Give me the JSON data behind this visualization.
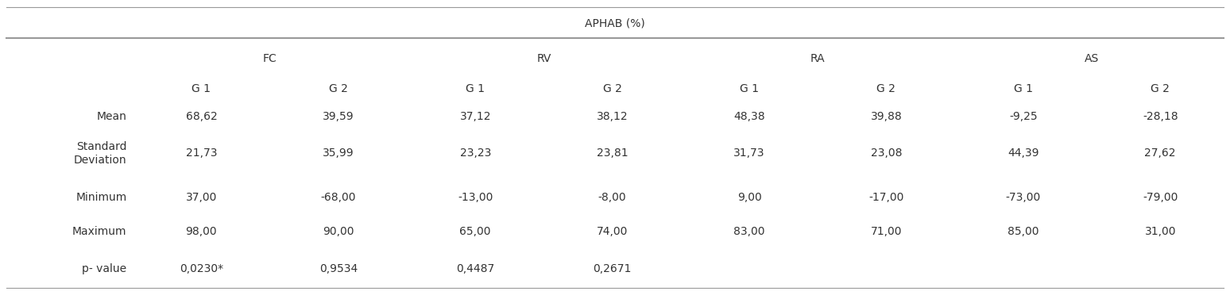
{
  "title": "APHAB (%)",
  "col_groups": [
    "FC",
    "RV",
    "RA",
    "AS"
  ],
  "subgroups": [
    "G 1",
    "G 2",
    "G 1",
    "G 2",
    "G 1",
    "G 2",
    "G 1",
    "G 2"
  ],
  "row_labels": [
    "Mean",
    "Standard\nDeviation",
    "Minimum",
    "Maximum",
    "p- value"
  ],
  "data": [
    [
      "68,62",
      "39,59",
      "37,12",
      "38,12",
      "48,38",
      "39,88",
      "-9,25",
      "-28,18"
    ],
    [
      "21,73",
      "35,99",
      "23,23",
      "23,81",
      "31,73",
      "23,08",
      "44,39",
      "27,62"
    ],
    [
      "37,00",
      "-68,00",
      "-13,00",
      "-8,00",
      "9,00",
      "-17,00",
      "-73,00",
      "-79,00"
    ],
    [
      "98,00",
      "90,00",
      "65,00",
      "74,00",
      "83,00",
      "71,00",
      "85,00",
      "31,00"
    ],
    [
      "0,0230*",
      "0,9534",
      "0,4487",
      "0,2671",
      "",
      "",
      "",
      ""
    ]
  ],
  "background_color": "#ffffff",
  "text_color": "#333333",
  "font_size": 10,
  "title_font_size": 10
}
